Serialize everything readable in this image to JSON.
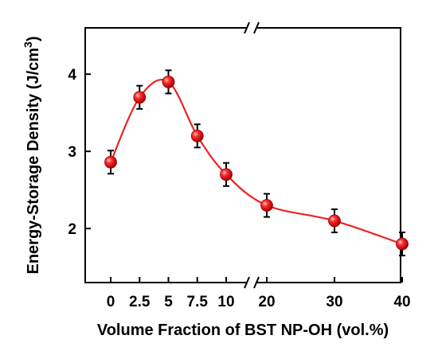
{
  "chart_data": {
    "type": "scatter",
    "xlabel": "Volume Fraction of BST NP-OH  (vol.%)",
    "ylabel_main": "Energy-Storage Density (J/cm",
    "ylabel_sup": "3",
    "ylabel_close": ")",
    "x_tick_labels": [
      "0",
      "2.5",
      "5",
      "7.5",
      "10",
      "20",
      "30",
      "40"
    ],
    "y_tick_labels": [
      "2",
      "3",
      "4"
    ],
    "x_axis_break": [
      10,
      20
    ],
    "ylim": [
      1.3,
      4.6
    ],
    "grid": false,
    "legend": false,
    "fit_curve": true,
    "marker_color": "#ee1111",
    "line_color": "#ee2222",
    "series": [
      {
        "x": [
          0,
          2.5,
          5,
          7.5,
          10,
          20,
          30,
          40
        ],
        "y": [
          2.86,
          3.7,
          3.9,
          3.2,
          2.7,
          2.3,
          2.1,
          1.8
        ],
        "yerr": [
          0.15,
          0.15,
          0.15,
          0.15,
          0.15,
          0.15,
          0.15,
          0.15
        ]
      }
    ]
  }
}
